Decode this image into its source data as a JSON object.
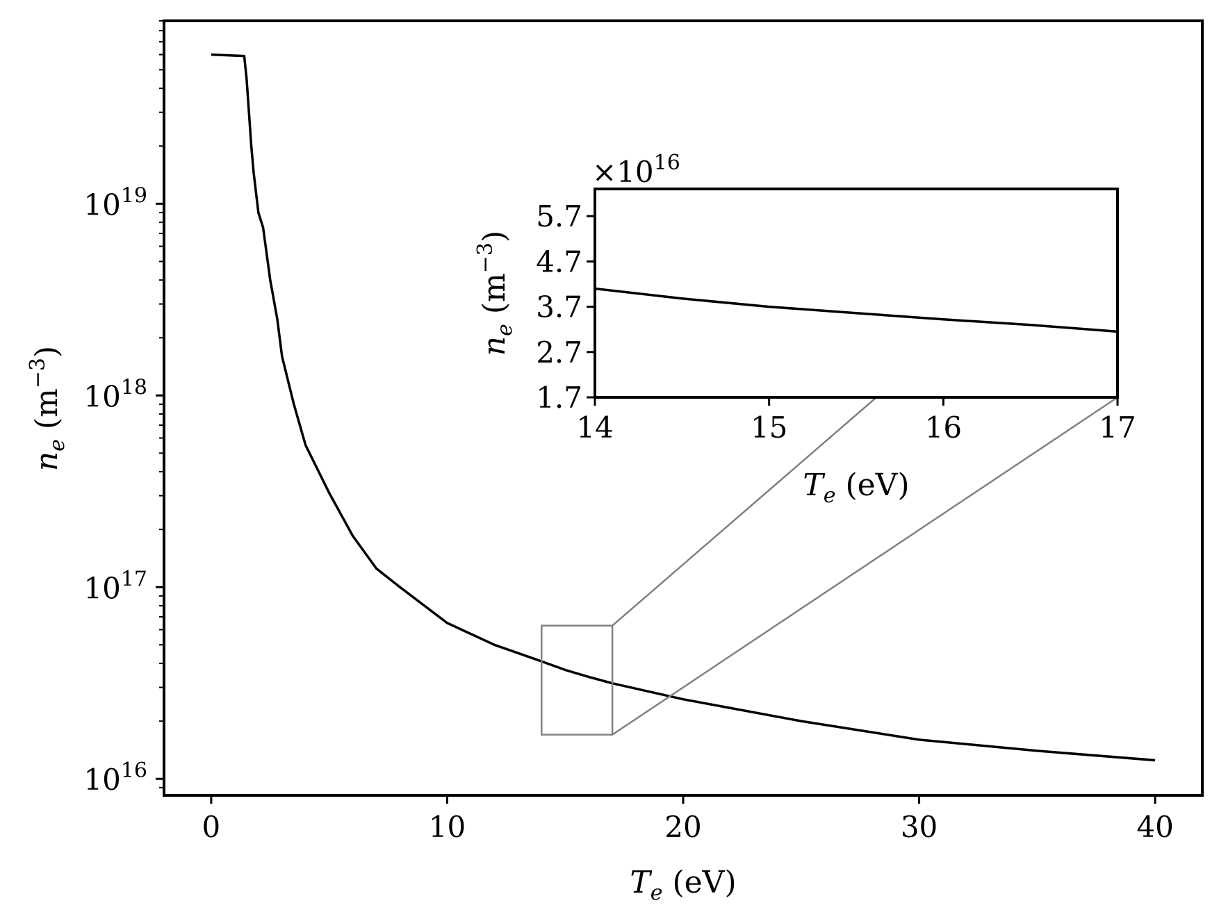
{
  "chart_data": [
    {
      "type": "line",
      "role": "main",
      "xlabel": {
        "var": "T",
        "sub": "e",
        "unit": " (eV)"
      },
      "ylabel": {
        "var": "n",
        "sub": "e",
        "unit": " (m",
        "sup": "−3",
        "close": ")"
      },
      "xlim": [
        -2,
        42
      ],
      "ylim": [
        8200000000000000.0,
        9e+19
      ],
      "yscale": "log",
      "xticks": [
        0,
        10,
        20,
        30,
        40
      ],
      "xtick_labels": [
        "0",
        "10",
        "20",
        "30",
        "40"
      ],
      "yticks": [
        1e+16,
        1e+17,
        1e+18,
        1e+19
      ],
      "ytick_labels": [
        {
          "base": "10",
          "exp": "16"
        },
        {
          "base": "10",
          "exp": "17"
        },
        {
          "base": "10",
          "exp": "18"
        },
        {
          "base": "10",
          "exp": "19"
        }
      ],
      "series": [
        {
          "color": "#000000",
          "x": [
            0,
            1.4,
            1.5,
            1.6,
            1.7,
            1.8,
            2.0,
            2.2,
            2.5,
            2.8,
            3.0,
            3.5,
            4.0,
            5.0,
            6.0,
            7.0,
            8.0,
            10.0,
            12.0,
            14.0,
            15.0,
            16.0,
            17.0,
            20.0,
            25.0,
            30.0,
            35.0,
            40.0
          ],
          "y": [
            6e+19,
            5.9e+19,
            4.5e+19,
            3e+19,
            2e+19,
            1.45e+19,
            9e+18,
            7.5e+18,
            4e+18,
            2.5e+18,
            1.6e+18,
            9e+17,
            5.5e+17,
            3.1e+17,
            1.85e+17,
            1.25e+17,
            1e+17,
            6.5e+16,
            5e+16,
            4.1e+16,
            3.7e+16,
            3.4e+16,
            3.15e+16,
            2.6e+16,
            2e+16,
            1.6e+16,
            1.4e+16,
            1.25e+16
          ]
        }
      ],
      "zoom_box": {
        "x": [
          14,
          17
        ],
        "y": [
          1.7e+16,
          6.3e+16
        ],
        "color": "#808080"
      }
    },
    {
      "type": "line",
      "role": "inset",
      "xlabel": {
        "var": "T",
        "sub": "e",
        "unit": " (eV)"
      },
      "ylabel": {
        "var": "n",
        "sub": "e",
        "unit": " (m",
        "sup": "−3",
        "close": ")"
      },
      "offset_text": {
        "prefix": "×10",
        "exp": "16"
      },
      "xlim": [
        14,
        17
      ],
      "ylim": [
        1.7,
        6.3
      ],
      "xticks": [
        14,
        15,
        16,
        17
      ],
      "xtick_labels": [
        "14",
        "15",
        "16",
        "17"
      ],
      "yticks": [
        1.7,
        2.7,
        3.7,
        4.7,
        5.7
      ],
      "ytick_labels": [
        "1.7",
        "2.7",
        "3.7",
        "4.7",
        "5.7"
      ],
      "series": [
        {
          "color": "#000000",
          "x": [
            14.0,
            14.5,
            15.0,
            15.5,
            16.0,
            16.5,
            17.0
          ],
          "y": [
            4.1,
            3.88,
            3.7,
            3.56,
            3.42,
            3.3,
            3.15
          ]
        }
      ],
      "connector_color": "#808080"
    }
  ]
}
